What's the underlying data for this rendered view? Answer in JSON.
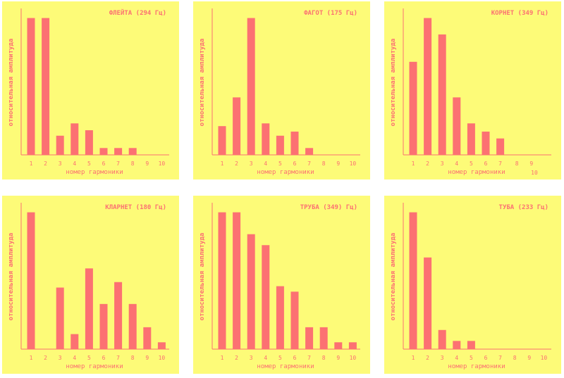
{
  "colors": {
    "panel_bg": "#fdfb78",
    "bar": "#fc7172",
    "text": "#fc7172",
    "axis": "#fc7172"
  },
  "chart_data": [
    {
      "type": "bar",
      "title": "ФЛЕЙТА (294 Гц)",
      "xlabel": "номер гармоники",
      "ylabel": "относительная амплитуда",
      "categories": [
        "1",
        "2",
        "3",
        "4",
        "5",
        "6",
        "7",
        "8",
        "9",
        "10"
      ],
      "values": [
        1.0,
        1.0,
        0.14,
        0.23,
        0.18,
        0.05,
        0.05,
        0.05,
        0,
        0
      ],
      "ylim": [
        0,
        1.07
      ],
      "grid": false
    },
    {
      "type": "bar",
      "title": "ФАГОТ (175 Гц)",
      "xlabel": "номер гармоники",
      "ylabel": "относительная амплитуда",
      "categories": [
        "1",
        "2",
        "3",
        "4",
        "5",
        "6",
        "7",
        "8",
        "9",
        "10"
      ],
      "values": [
        0.21,
        0.42,
        1.0,
        0.23,
        0.14,
        0.17,
        0.05,
        0,
        0,
        0
      ],
      "ylim": [
        0,
        1.07
      ],
      "grid": false
    },
    {
      "type": "bar",
      "title": "КОРНЕТ (349 Гц)",
      "xlabel": "номер гармоники",
      "ylabel": "относительная амплитуда",
      "categories": [
        "1",
        "2",
        "3",
        "4",
        "5",
        "6",
        "7",
        "8",
        "9",
        "10"
      ],
      "values": [
        0.68,
        1.0,
        0.88,
        0.42,
        0.23,
        0.17,
        0.12,
        0,
        0,
        0
      ],
      "ylim": [
        0,
        1.07
      ],
      "grid": false
    },
    {
      "type": "bar",
      "title": "КЛАРНЕТ (180 Гц)",
      "xlabel": "номер гармоники",
      "ylabel": "относительная амплитуда",
      "categories": [
        "1",
        "2",
        "3",
        "4",
        "5",
        "6",
        "7",
        "8",
        "9",
        "10"
      ],
      "values": [
        1.0,
        0,
        0.45,
        0.11,
        0.59,
        0.33,
        0.49,
        0.33,
        0.16,
        0.05
      ],
      "ylim": [
        0,
        1.07
      ],
      "grid": false
    },
    {
      "type": "bar",
      "title": "ТРУБА (349) Гц)",
      "xlabel": "номер гармоники",
      "ylabel": "относительная амплитуда",
      "categories": [
        "1",
        "2",
        "3",
        "4",
        "5",
        "6",
        "7",
        "8",
        "9",
        "10"
      ],
      "values": [
        1.0,
        1.0,
        0.84,
        0.76,
        0.46,
        0.42,
        0.16,
        0.16,
        0.05,
        0.05
      ],
      "ylim": [
        0,
        1.07
      ],
      "grid": false
    },
    {
      "type": "bar",
      "title": "ТУБА (233 Гц)",
      "xlabel": "номер гармоники",
      "ylabel": "относительная амплитуда",
      "categories": [
        "1",
        "2",
        "3",
        "4",
        "5",
        "6",
        "7",
        "8",
        "9",
        "10"
      ],
      "values": [
        1.0,
        0.67,
        0.14,
        0.06,
        0.06,
        0,
        0,
        0,
        0,
        0
      ],
      "ylim": [
        0,
        1.07
      ],
      "grid": false
    }
  ]
}
